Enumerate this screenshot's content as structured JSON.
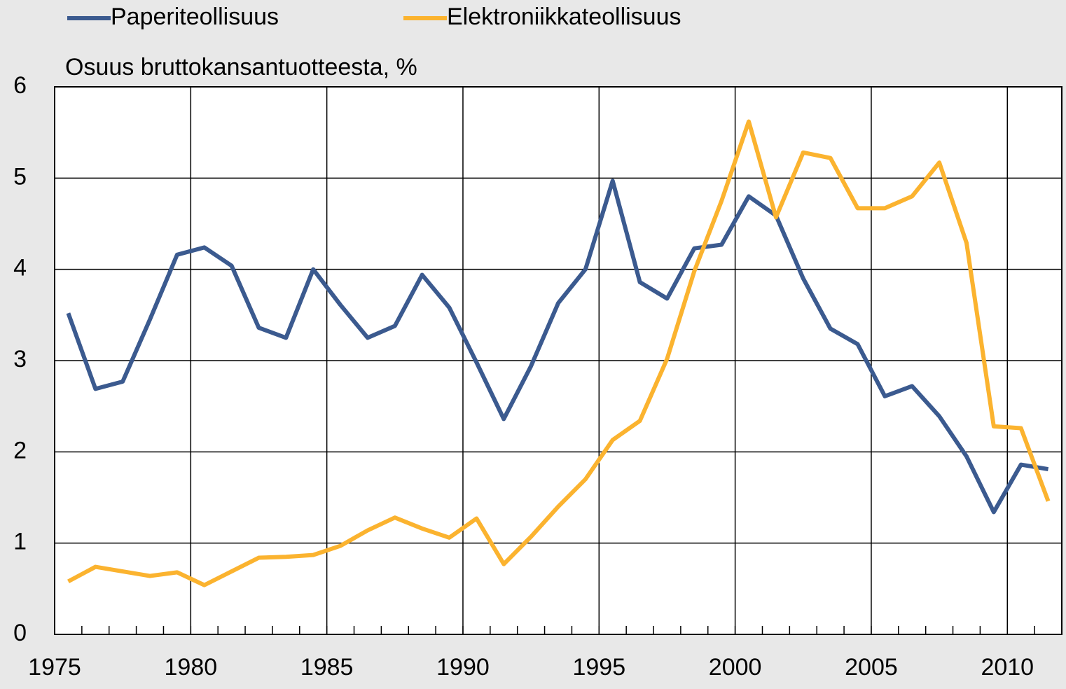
{
  "chart_data": {
    "type": "line",
    "y_axis_label": "Osuus bruttokansantuotteesta, %",
    "x": [
      1975,
      1976,
      1977,
      1978,
      1979,
      1980,
      1981,
      1982,
      1983,
      1984,
      1985,
      1986,
      1987,
      1988,
      1989,
      1990,
      1991,
      1992,
      1993,
      1994,
      1995,
      1996,
      1997,
      1998,
      1999,
      2000,
      2001,
      2002,
      2003,
      2004,
      2005,
      2006,
      2007,
      2008,
      2009,
      2010,
      2011
    ],
    "series": [
      {
        "name": "Paperiteollisuus",
        "color": "#3b5a8f",
        "values": [
          3.52,
          2.69,
          2.77,
          3.45,
          4.16,
          4.24,
          4.04,
          3.36,
          3.25,
          4.0,
          3.61,
          3.25,
          3.38,
          3.94,
          3.58,
          2.98,
          2.36,
          2.94,
          3.63,
          4.0,
          4.97,
          3.86,
          3.68,
          4.23,
          4.27,
          4.8,
          4.59,
          3.9,
          3.35,
          3.18,
          2.61,
          2.72,
          2.39,
          1.95,
          1.34,
          1.86,
          1.81
        ]
      },
      {
        "name": "Elektroniikkateollisuus",
        "color": "#fbb32f",
        "values": [
          0.58,
          0.74,
          0.69,
          0.64,
          0.68,
          0.54,
          0.69,
          0.84,
          0.85,
          0.87,
          0.97,
          1.14,
          1.28,
          1.16,
          1.06,
          1.27,
          0.77,
          1.07,
          1.4,
          1.7,
          2.13,
          2.34,
          3.02,
          3.98,
          4.75,
          5.62,
          4.57,
          5.28,
          5.22,
          4.67,
          4.67,
          4.8,
          5.17,
          4.29,
          2.28,
          2.26,
          1.46
        ]
      }
    ],
    "xlim": [
      1975,
      2012
    ],
    "xticks": [
      1975,
      1980,
      1985,
      1990,
      1995,
      2000,
      2005,
      2010
    ],
    "ylim": [
      0,
      6
    ],
    "yticks": [
      0,
      1,
      2,
      3,
      4,
      5,
      6
    ],
    "grid": true
  }
}
